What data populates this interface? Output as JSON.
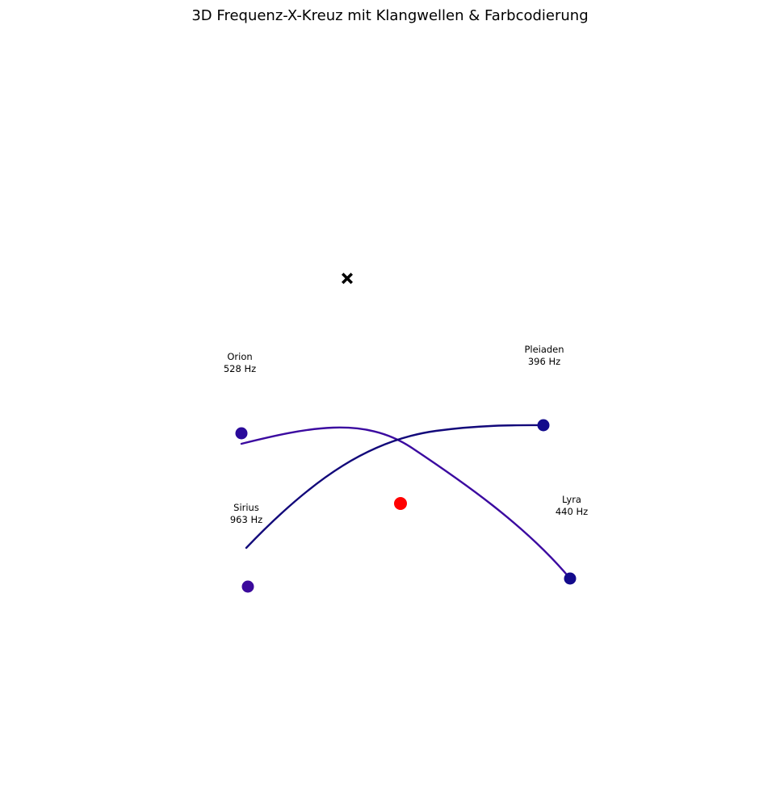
{
  "chart_data": {
    "type": "scatter",
    "title": "3D Frequenz-X-Kreuz mit Klangwellen & Farbcodierung",
    "axes": "off",
    "grid": false,
    "center_marker": {
      "shape": "X",
      "color": "#000000"
    },
    "focus_point": {
      "color": "#ff0000"
    },
    "nodes": [
      {
        "name": "Orion",
        "frequency": "528 Hz",
        "color": "#2a0a9a"
      },
      {
        "name": "Pleiaden",
        "frequency": "396 Hz",
        "color": "#120a8c"
      },
      {
        "name": "Sirius",
        "frequency": "963 Hz",
        "color": "#3b0a9c"
      },
      {
        "name": "Lyra",
        "frequency": "440 Hz",
        "color": "#130a8c"
      }
    ],
    "waves": [
      {
        "from": "Orion",
        "to": "Lyra",
        "color": "#3b0aa0"
      },
      {
        "from": "Sirius",
        "to": "Pleiaden",
        "color": "#12087a"
      }
    ]
  }
}
